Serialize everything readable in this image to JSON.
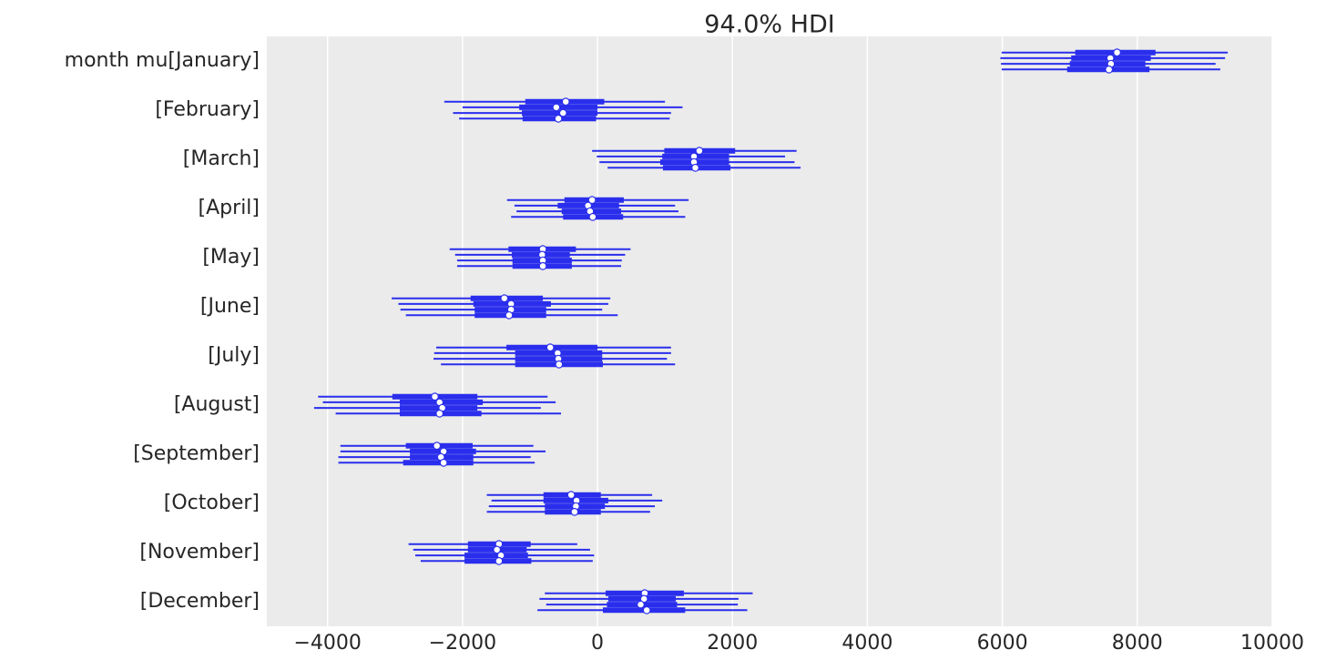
{
  "chart_data": {
    "type": "forest",
    "title": "94.0% HDI",
    "categories": [
      "month mu[January]",
      "[February]",
      "[March]",
      "[April]",
      "[May]",
      "[June]",
      "[July]",
      "[August]",
      "[September]",
      "[October]",
      "[November]",
      "[December]"
    ],
    "xlim": [
      -4900,
      10000
    ],
    "xticks": [
      {
        "value": -4000,
        "label": "−4000"
      },
      {
        "value": -2000,
        "label": "−2000"
      },
      0,
      2000,
      4000,
      6000,
      8000,
      10000
    ],
    "grid": true,
    "series": [
      {
        "color": "#2a2eec",
        "hdi_low": [
          5990,
          -2270,
          -80,
          -1340,
          -2190,
          -3050,
          -2390,
          -4140,
          -3810,
          -1640,
          -2800,
          -780
        ],
        "hdi_high": [
          9340,
          1000,
          2950,
          1350,
          490,
          190,
          1090,
          -740,
          -950,
          810,
          -300,
          2300
        ],
        "iqr_low": [
          7080,
          -1070,
          990,
          -490,
          -1320,
          -1880,
          -1350,
          -3040,
          -2840,
          -800,
          -1920,
          120
        ],
        "iqr_high": [
          8270,
          100,
          2040,
          390,
          -320,
          -810,
          0,
          -1780,
          -1850,
          50,
          -990,
          1280
        ],
        "median": [
          7700,
          -470,
          1510,
          -80,
          -810,
          -1380,
          -700,
          -2410,
          -2380,
          -390,
          -1460,
          700
        ]
      },
      {
        "color": "#2a2eec",
        "hdi_low": [
          5970,
          -2000,
          -10,
          -1230,
          -2110,
          -2950,
          -2420,
          -4070,
          -3810,
          -1570,
          -2730,
          -860
        ],
        "hdi_high": [
          9300,
          1260,
          2780,
          1150,
          410,
          160,
          1090,
          -620,
          -770,
          960,
          -110,
          2090
        ],
        "iqr_low": [
          7020,
          -1160,
          960,
          -590,
          -1270,
          -1840,
          -1220,
          -2930,
          -2780,
          -800,
          -1920,
          160
        ],
        "iqr_high": [
          8200,
          0,
          1950,
          320,
          -410,
          -690,
          70,
          -1700,
          -1800,
          160,
          -1050,
          1160
        ],
        "median": [
          7600,
          -610,
          1430,
          -140,
          -820,
          -1280,
          -590,
          -2340,
          -2280,
          -310,
          -1490,
          690
        ]
      },
      {
        "color": "#2a2eec",
        "hdi_low": [
          5980,
          -2140,
          30,
          -1200,
          -2080,
          -2920,
          -2430,
          -4200,
          -3840,
          -1610,
          -2700,
          -760
        ],
        "hdi_high": [
          9160,
          1090,
          2920,
          1200,
          360,
          70,
          1030,
          -840,
          -990,
          850,
          -50,
          2080
        ],
        "iqr_low": [
          7000,
          -1120,
          930,
          -530,
          -1260,
          -1820,
          -1220,
          -2930,
          -2780,
          -780,
          -1970,
          140
        ],
        "iqr_high": [
          8120,
          0,
          1950,
          350,
          -380,
          -760,
          70,
          -1780,
          -1840,
          110,
          -1030,
          1180
        ],
        "median": [
          7610,
          -510,
          1430,
          -110,
          -810,
          -1280,
          -580,
          -2300,
          -2320,
          -320,
          -1430,
          640
        ]
      },
      {
        "color": "#2a2eec",
        "hdi_low": [
          5990,
          -2050,
          150,
          -1280,
          -2080,
          -2840,
          -2320,
          -3880,
          -3840,
          -1640,
          -2620,
          -890
        ],
        "hdi_high": [
          9230,
          1070,
          3010,
          1300,
          350,
          300,
          1150,
          -540,
          -930,
          780,
          -70,
          2220
        ],
        "iqr_low": [
          6960,
          -1110,
          970,
          -510,
          -1260,
          -1820,
          -1220,
          -2930,
          -2880,
          -780,
          -1970,
          80
        ],
        "iqr_high": [
          8180,
          -20,
          1970,
          380,
          -380,
          -760,
          80,
          -1720,
          -1840,
          50,
          -980,
          1300
        ],
        "median": [
          7580,
          -580,
          1450,
          -70,
          -810,
          -1310,
          -570,
          -2340,
          -2280,
          -340,
          -1460,
          730
        ]
      }
    ]
  }
}
